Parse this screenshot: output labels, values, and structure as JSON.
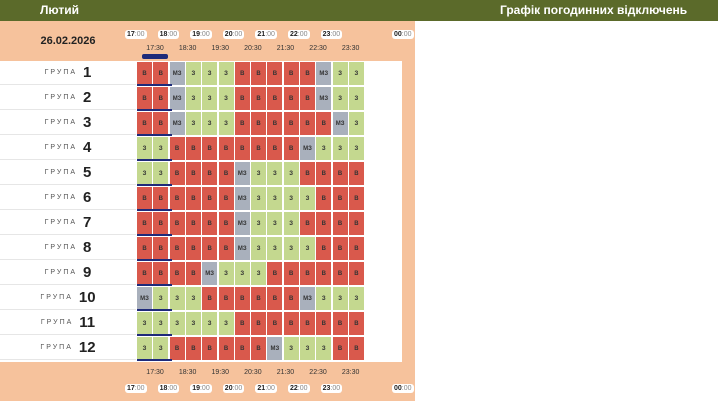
{
  "header": {
    "month": "Лютий",
    "title": "Графік погодинних відключень"
  },
  "date": "26.02.2026",
  "group_label": "ГРУПА",
  "hours": [
    {
      "h": "17",
      "m": ":00"
    },
    {
      "h": "18",
      "m": ":00"
    },
    {
      "h": "19",
      "m": ":00"
    },
    {
      "h": "20",
      "m": ":00"
    },
    {
      "h": "21",
      "m": ":00"
    },
    {
      "h": "22",
      "m": ":00"
    },
    {
      "h": "23",
      "m": ":00"
    },
    {
      "h": "00",
      "m": ":00"
    }
  ],
  "half_hours": [
    "17:30",
    "18:30",
    "19:30",
    "20:30",
    "21:30",
    "22:30",
    "23:30"
  ],
  "legend_codes": {
    "V": "В",
    "Z": "З",
    "M": "МЗ"
  },
  "colors": {
    "off": "#d9594c",
    "on": "#c4d88f",
    "maybe": "#a9b0bc",
    "header": "#5b6a2a",
    "peach": "#f6c29c",
    "now": "#1e2a7a"
  },
  "groups": [
    {
      "num": "1",
      "slots": [
        "В",
        "В",
        "МЗ",
        "З",
        "З",
        "З",
        "В",
        "В",
        "В",
        "В",
        "В",
        "МЗ",
        "З",
        "З"
      ]
    },
    {
      "num": "2",
      "slots": [
        "В",
        "В",
        "МЗ",
        "З",
        "З",
        "З",
        "В",
        "В",
        "В",
        "В",
        "В",
        "МЗ",
        "З",
        "З"
      ]
    },
    {
      "num": "3",
      "slots": [
        "В",
        "В",
        "МЗ",
        "З",
        "З",
        "З",
        "В",
        "В",
        "В",
        "В",
        "В",
        "В",
        "МЗ",
        "З"
      ]
    },
    {
      "num": "4",
      "slots": [
        "З",
        "З",
        "В",
        "В",
        "В",
        "В",
        "В",
        "В",
        "В",
        "В",
        "МЗ",
        "З",
        "З",
        "З"
      ]
    },
    {
      "num": "5",
      "slots": [
        "З",
        "З",
        "В",
        "В",
        "В",
        "В",
        "МЗ",
        "З",
        "З",
        "З",
        "В",
        "В",
        "В",
        "В"
      ]
    },
    {
      "num": "6",
      "slots": [
        "В",
        "В",
        "В",
        "В",
        "В",
        "В",
        "МЗ",
        "З",
        "З",
        "З",
        "З",
        "В",
        "В",
        "В"
      ]
    },
    {
      "num": "7",
      "slots": [
        "В",
        "В",
        "В",
        "В",
        "В",
        "В",
        "МЗ",
        "З",
        "З",
        "З",
        "В",
        "В",
        "В",
        "В"
      ]
    },
    {
      "num": "8",
      "slots": [
        "В",
        "В",
        "В",
        "В",
        "В",
        "В",
        "МЗ",
        "З",
        "З",
        "З",
        "З",
        "В",
        "В",
        "В"
      ]
    },
    {
      "num": "9",
      "slots": [
        "В",
        "В",
        "В",
        "В",
        "МЗ",
        "З",
        "З",
        "З",
        "В",
        "В",
        "В",
        "В",
        "В",
        "В"
      ]
    },
    {
      "num": "10",
      "slots": [
        "МЗ",
        "З",
        "З",
        "З",
        "В",
        "В",
        "В",
        "В",
        "В",
        "В",
        "МЗ",
        "З",
        "З",
        "З"
      ]
    },
    {
      "num": "11",
      "slots": [
        "З",
        "З",
        "З",
        "З",
        "З",
        "З",
        "В",
        "В",
        "В",
        "В",
        "В",
        "В",
        "В",
        "В"
      ]
    },
    {
      "num": "12",
      "slots": [
        "З",
        "З",
        "В",
        "В",
        "В",
        "В",
        "В",
        "В",
        "МЗ",
        "З",
        "З",
        "З",
        "В",
        "В"
      ]
    }
  ]
}
